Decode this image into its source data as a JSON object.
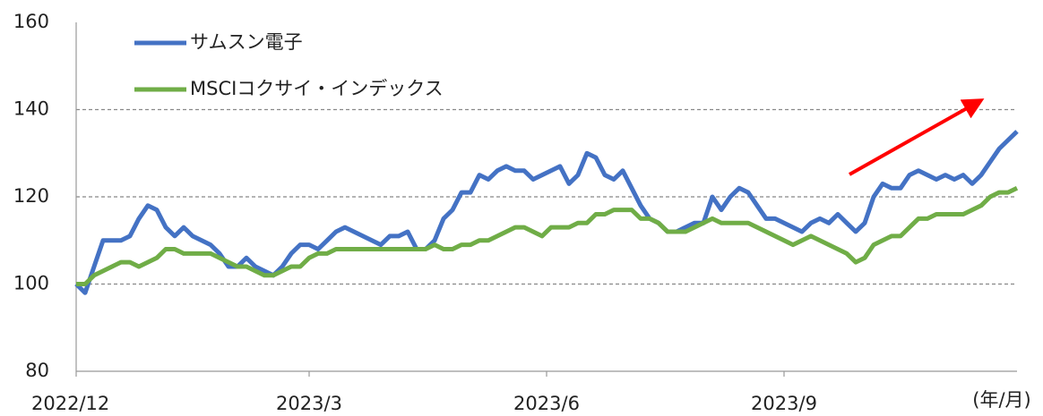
{
  "chart_data": {
    "type": "line",
    "x": [
      0,
      1,
      2,
      3,
      4,
      5,
      6,
      7,
      8,
      9,
      10,
      11,
      12,
      13,
      14,
      15,
      16,
      17,
      18,
      19,
      20,
      21,
      22,
      23,
      24,
      25,
      26,
      27,
      28,
      29,
      30,
      31,
      32,
      33,
      34,
      35,
      36,
      37,
      38,
      39,
      40,
      41,
      42,
      43,
      44,
      45,
      46,
      47,
      48,
      49,
      50,
      51,
      52,
      53,
      54,
      55,
      56,
      57,
      58,
      59,
      60,
      61,
      62,
      63,
      64,
      65,
      66,
      67,
      68,
      69,
      70,
      71,
      72,
      73,
      74,
      75,
      76,
      77,
      78,
      79,
      80,
      81,
      82,
      83,
      84,
      85,
      86,
      87,
      88,
      89,
      90,
      91,
      92,
      93,
      94,
      95,
      96,
      97,
      98,
      99,
      100,
      101,
      102,
      103,
      104,
      105
    ],
    "xlim": [
      0,
      105
    ],
    "xticks": [
      {
        "value": 0,
        "label": "2022/12"
      },
      {
        "value": 26,
        "label": "2023/3"
      },
      {
        "value": 52.5,
        "label": "2023/6"
      },
      {
        "value": 79,
        "label": "2023/9"
      }
    ],
    "x_label": "(年/月)",
    "ylim": [
      80,
      160
    ],
    "yticks": [
      80,
      100,
      120,
      140,
      160
    ],
    "grid": true,
    "legend": "upper left",
    "series": [
      {
        "name": "サムスン電子",
        "color": "#4472c4",
        "values": [
          100,
          98,
          104,
          110,
          110,
          110,
          111,
          115,
          118,
          117,
          113,
          111,
          113,
          111,
          110,
          109,
          107,
          104,
          104,
          106,
          104,
          103,
          102,
          104,
          107,
          109,
          109,
          108,
          110,
          112,
          113,
          112,
          111,
          110,
          109,
          111,
          111,
          112,
          108,
          108,
          110,
          115,
          117,
          121,
          121,
          125,
          124,
          126,
          127,
          126,
          126,
          124,
          125,
          126,
          127,
          123,
          125,
          130,
          129,
          125,
          124,
          126,
          122,
          118,
          115,
          114,
          112,
          112,
          113,
          114,
          114,
          120,
          117,
          120,
          122,
          121,
          118,
          115,
          115,
          114,
          113,
          112,
          114,
          115,
          114,
          116,
          114,
          112,
          114,
          120,
          123,
          122,
          122,
          125,
          126,
          125,
          124,
          125,
          124,
          125,
          123,
          125,
          128,
          131,
          133,
          135
        ]
      },
      {
        "name": "MSCIコクサイ・インデックス",
        "color": "#70ad47",
        "values": [
          100,
          100,
          102,
          103,
          104,
          105,
          105,
          104,
          105,
          106,
          108,
          108,
          107,
          107,
          107,
          107,
          106,
          105,
          104,
          104,
          103,
          102,
          102,
          103,
          104,
          104,
          106,
          107,
          107,
          108,
          108,
          108,
          108,
          108,
          108,
          108,
          108,
          108,
          108,
          108,
          109,
          108,
          108,
          109,
          109,
          110,
          110,
          111,
          112,
          113,
          113,
          112,
          111,
          113,
          113,
          113,
          114,
          114,
          116,
          116,
          117,
          117,
          117,
          115,
          115,
          114,
          112,
          112,
          112,
          113,
          114,
          115,
          114,
          114,
          114,
          114,
          113,
          112,
          111,
          110,
          109,
          110,
          111,
          110,
          109,
          108,
          107,
          105,
          106,
          109,
          110,
          111,
          111,
          113,
          115,
          115,
          116,
          116,
          116,
          116,
          117,
          118,
          120,
          121,
          121,
          122
        ]
      }
    ]
  }
}
